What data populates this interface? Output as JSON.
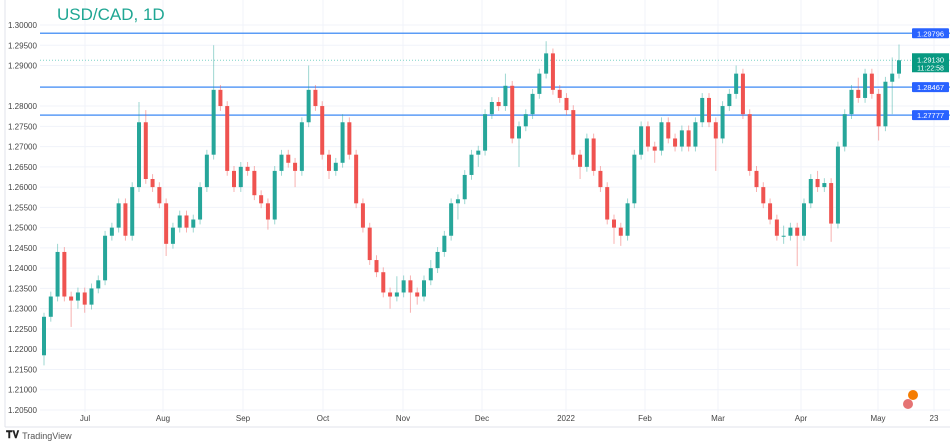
{
  "title": "USD/CAD, 1D",
  "brand": "TradingView",
  "colors": {
    "up": "#26a69a",
    "down": "#ef5350",
    "level": "#2962ff",
    "price": "#089981"
  },
  "chart_data": {
    "type": "candlestick",
    "title": "USD/CAD, 1D",
    "ylim": [
      1.205,
      1.3
    ],
    "y_ticks": [
      "1.30000",
      "1.29500",
      "1.29000",
      "1.28000",
      "1.27500",
      "1.27000",
      "1.26500",
      "1.26000",
      "1.25500",
      "1.25000",
      "1.24500",
      "1.24000",
      "1.23500",
      "1.23000",
      "1.22500",
      "1.22000",
      "1.21500",
      "1.21000",
      "1.20500"
    ],
    "x_ticks": [
      "Jul",
      "Aug",
      "Sep",
      "Oct",
      "Nov",
      "Dec",
      "2022",
      "Feb",
      "Mar",
      "Apr",
      "May",
      "23"
    ],
    "grid": true,
    "horizontal_levels": [
      {
        "label": "1.29796",
        "value": 1.29796
      },
      {
        "label": "1.28467",
        "value": 1.28467
      },
      {
        "label": "1.27777",
        "value": 1.27777
      }
    ],
    "current_price": {
      "label": "1.29130",
      "value": 1.2913,
      "countdown": "11:22:58"
    },
    "candles_ohlc": [
      [
        1.2185,
        1.229,
        1.216,
        1.228
      ],
      [
        1.228,
        1.2342,
        1.2268,
        1.233
      ],
      [
        1.233,
        1.246,
        1.2318,
        1.244
      ],
      [
        1.244,
        1.2452,
        1.2318,
        1.233
      ],
      [
        1.233,
        1.2342,
        1.2255,
        1.232
      ],
      [
        1.232,
        1.2352,
        1.23,
        1.234
      ],
      [
        1.234,
        1.2352,
        1.229,
        1.231
      ],
      [
        1.231,
        1.2362,
        1.2298,
        1.235
      ],
      [
        1.235,
        1.2382,
        1.2338,
        1.237
      ],
      [
        1.237,
        1.2492,
        1.2358,
        1.248
      ],
      [
        1.248,
        1.2512,
        1.2468,
        1.25
      ],
      [
        1.25,
        1.2572,
        1.2488,
        1.256
      ],
      [
        1.256,
        1.2572,
        1.2468,
        1.248
      ],
      [
        1.248,
        1.2612,
        1.2468,
        1.26
      ],
      [
        1.26,
        1.281,
        1.2588,
        1.276
      ],
      [
        1.276,
        1.279,
        1.2608,
        1.262
      ],
      [
        1.262,
        1.2632,
        1.2588,
        1.26
      ],
      [
        1.26,
        1.2612,
        1.2548,
        1.256
      ],
      [
        1.256,
        1.2572,
        1.243,
        1.246
      ],
      [
        1.246,
        1.2512,
        1.2448,
        1.25
      ],
      [
        1.25,
        1.2542,
        1.2488,
        1.253
      ],
      [
        1.253,
        1.2542,
        1.2488,
        1.25
      ],
      [
        1.25,
        1.2532,
        1.2488,
        1.252
      ],
      [
        1.252,
        1.2612,
        1.2508,
        1.26
      ],
      [
        1.26,
        1.2692,
        1.2588,
        1.268
      ],
      [
        1.268,
        1.295,
        1.2668,
        1.284
      ],
      [
        1.284,
        1.2852,
        1.2788,
        1.28
      ],
      [
        1.28,
        1.2812,
        1.2628,
        1.264
      ],
      [
        1.264,
        1.2652,
        1.2588,
        1.26
      ],
      [
        1.26,
        1.2662,
        1.2588,
        1.265
      ],
      [
        1.265,
        1.2662,
        1.2628,
        1.264
      ],
      [
        1.264,
        1.2652,
        1.2568,
        1.258
      ],
      [
        1.258,
        1.2592,
        1.2548,
        1.256
      ],
      [
        1.256,
        1.2572,
        1.2495,
        1.252
      ],
      [
        1.252,
        1.2652,
        1.2508,
        1.264
      ],
      [
        1.264,
        1.2692,
        1.2628,
        1.268
      ],
      [
        1.268,
        1.2692,
        1.2648,
        1.266
      ],
      [
        1.266,
        1.2672,
        1.26,
        1.264
      ],
      [
        1.264,
        1.2772,
        1.2628,
        1.276
      ],
      [
        1.276,
        1.29,
        1.2748,
        1.284
      ],
      [
        1.284,
        1.2852,
        1.2788,
        1.28
      ],
      [
        1.28,
        1.2812,
        1.2668,
        1.268
      ],
      [
        1.268,
        1.2692,
        1.262,
        1.264
      ],
      [
        1.264,
        1.2672,
        1.2628,
        1.266
      ],
      [
        1.266,
        1.278,
        1.2648,
        1.276
      ],
      [
        1.276,
        1.2772,
        1.2668,
        1.268
      ],
      [
        1.268,
        1.2692,
        1.2548,
        1.256
      ],
      [
        1.256,
        1.2572,
        1.2488,
        1.25
      ],
      [
        1.25,
        1.2512,
        1.2408,
        1.242
      ],
      [
        1.242,
        1.2432,
        1.2378,
        1.239
      ],
      [
        1.239,
        1.2402,
        1.2328,
        1.234
      ],
      [
        1.234,
        1.2352,
        1.23,
        1.233
      ],
      [
        1.233,
        1.238,
        1.2318,
        1.234
      ],
      [
        1.234,
        1.2382,
        1.2328,
        1.237
      ],
      [
        1.237,
        1.2382,
        1.229,
        1.234
      ],
      [
        1.234,
        1.2352,
        1.231,
        1.233
      ],
      [
        1.233,
        1.2382,
        1.2318,
        1.237
      ],
      [
        1.237,
        1.242,
        1.2358,
        1.24
      ],
      [
        1.24,
        1.2452,
        1.2388,
        1.244
      ],
      [
        1.244,
        1.2492,
        1.2428,
        1.248
      ],
      [
        1.248,
        1.2572,
        1.2468,
        1.256
      ],
      [
        1.256,
        1.2582,
        1.252,
        1.257
      ],
      [
        1.257,
        1.2642,
        1.2558,
        1.263
      ],
      [
        1.263,
        1.2692,
        1.2618,
        1.268
      ],
      [
        1.268,
        1.2702,
        1.265,
        1.269
      ],
      [
        1.269,
        1.2792,
        1.2678,
        1.278
      ],
      [
        1.278,
        1.2822,
        1.2768,
        1.281
      ],
      [
        1.281,
        1.2822,
        1.2788,
        1.28
      ],
      [
        1.28,
        1.288,
        1.2788,
        1.285
      ],
      [
        1.285,
        1.2862,
        1.2708,
        1.272
      ],
      [
        1.272,
        1.2762,
        1.265,
        1.275
      ],
      [
        1.275,
        1.2792,
        1.2738,
        1.278
      ],
      [
        1.278,
        1.2842,
        1.2768,
        1.283
      ],
      [
        1.283,
        1.2892,
        1.2818,
        1.288
      ],
      [
        1.288,
        1.296,
        1.2868,
        1.293
      ],
      [
        1.293,
        1.2942,
        1.2828,
        1.284
      ],
      [
        1.284,
        1.2852,
        1.2808,
        1.282
      ],
      [
        1.282,
        1.2832,
        1.2778,
        1.279
      ],
      [
        1.279,
        1.2802,
        1.2668,
        1.268
      ],
      [
        1.268,
        1.2692,
        1.262,
        1.265
      ],
      [
        1.265,
        1.2732,
        1.2638,
        1.272
      ],
      [
        1.272,
        1.2732,
        1.2628,
        1.264
      ],
      [
        1.264,
        1.2652,
        1.2588,
        1.26
      ],
      [
        1.26,
        1.2612,
        1.2508,
        1.252
      ],
      [
        1.252,
        1.2532,
        1.246,
        1.25
      ],
      [
        1.25,
        1.2512,
        1.2455,
        1.248
      ],
      [
        1.248,
        1.2572,
        1.2468,
        1.256
      ],
      [
        1.256,
        1.2692,
        1.2548,
        1.268
      ],
      [
        1.268,
        1.2762,
        1.2668,
        1.275
      ],
      [
        1.275,
        1.2762,
        1.2688,
        1.27
      ],
      [
        1.27,
        1.2712,
        1.266,
        1.269
      ],
      [
        1.269,
        1.2772,
        1.2678,
        1.276
      ],
      [
        1.276,
        1.2772,
        1.2708,
        1.272
      ],
      [
        1.272,
        1.2732,
        1.2688,
        1.27
      ],
      [
        1.27,
        1.2752,
        1.2688,
        1.274
      ],
      [
        1.274,
        1.2752,
        1.2688,
        1.27
      ],
      [
        1.27,
        1.2772,
        1.2688,
        1.276
      ],
      [
        1.276,
        1.2832,
        1.2748,
        1.282
      ],
      [
        1.282,
        1.2832,
        1.2748,
        1.276
      ],
      [
        1.276,
        1.2772,
        1.264,
        1.272
      ],
      [
        1.272,
        1.2812,
        1.2708,
        1.28
      ],
      [
        1.28,
        1.2842,
        1.2788,
        1.283
      ],
      [
        1.283,
        1.29,
        1.2818,
        1.288
      ],
      [
        1.288,
        1.2892,
        1.2768,
        1.278
      ],
      [
        1.278,
        1.2792,
        1.2628,
        1.264
      ],
      [
        1.264,
        1.2652,
        1.2588,
        1.26
      ],
      [
        1.26,
        1.2612,
        1.2548,
        1.256
      ],
      [
        1.256,
        1.2572,
        1.2508,
        1.252
      ],
      [
        1.252,
        1.2532,
        1.2468,
        1.248
      ],
      [
        1.248,
        1.2505,
        1.246,
        1.248
      ],
      [
        1.248,
        1.2512,
        1.2468,
        1.25
      ],
      [
        1.25,
        1.2512,
        1.2405,
        1.248
      ],
      [
        1.248,
        1.2572,
        1.2468,
        1.256
      ],
      [
        1.256,
        1.2632,
        1.2548,
        1.262
      ],
      [
        1.262,
        1.264,
        1.2588,
        1.26
      ],
      [
        1.26,
        1.2622,
        1.2588,
        1.261
      ],
      [
        1.261,
        1.2622,
        1.2465,
        1.251
      ],
      [
        1.251,
        1.2712,
        1.2498,
        1.27
      ],
      [
        1.27,
        1.2792,
        1.2688,
        1.278
      ],
      [
        1.278,
        1.2852,
        1.2768,
        1.284
      ],
      [
        1.284,
        1.287,
        1.2808,
        1.282
      ],
      [
        1.282,
        1.2892,
        1.2808,
        1.288
      ],
      [
        1.288,
        1.2892,
        1.2818,
        1.283
      ],
      [
        1.283,
        1.2842,
        1.2715,
        1.275
      ],
      [
        1.275,
        1.2872,
        1.2738,
        1.286
      ],
      [
        1.286,
        1.292,
        1.278,
        1.288
      ],
      [
        1.288,
        1.2952,
        1.2868,
        1.2913
      ]
    ]
  }
}
